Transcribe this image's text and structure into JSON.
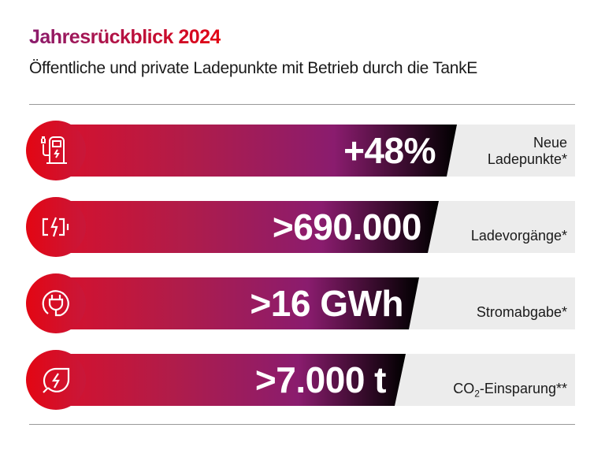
{
  "header": {
    "title": "Jahresrückblick 2024",
    "subtitle": "Öffentliche und private Ladepunkte mit Betrieb durch die TankE"
  },
  "colors": {
    "brand_red": "#e30613",
    "brand_purple": "#8a1c6e",
    "label_background": "#ececec"
  },
  "stats": [
    {
      "icon": "charging-station-icon",
      "value": "+48%",
      "label_line1": "Neue",
      "label_line2": "Ladepunkte*"
    },
    {
      "icon": "battery-charging-icon",
      "value": ">690.000",
      "label": "Ladevorgänge*"
    },
    {
      "icon": "plug-icon",
      "value": ">16 GWh",
      "label": "Stromabgabe*"
    },
    {
      "icon": "leaf-lightning-icon",
      "value": ">7.000 t",
      "label_prefix": "CO",
      "label_sub": "2",
      "label_suffix": "-Einsparung**"
    }
  ]
}
